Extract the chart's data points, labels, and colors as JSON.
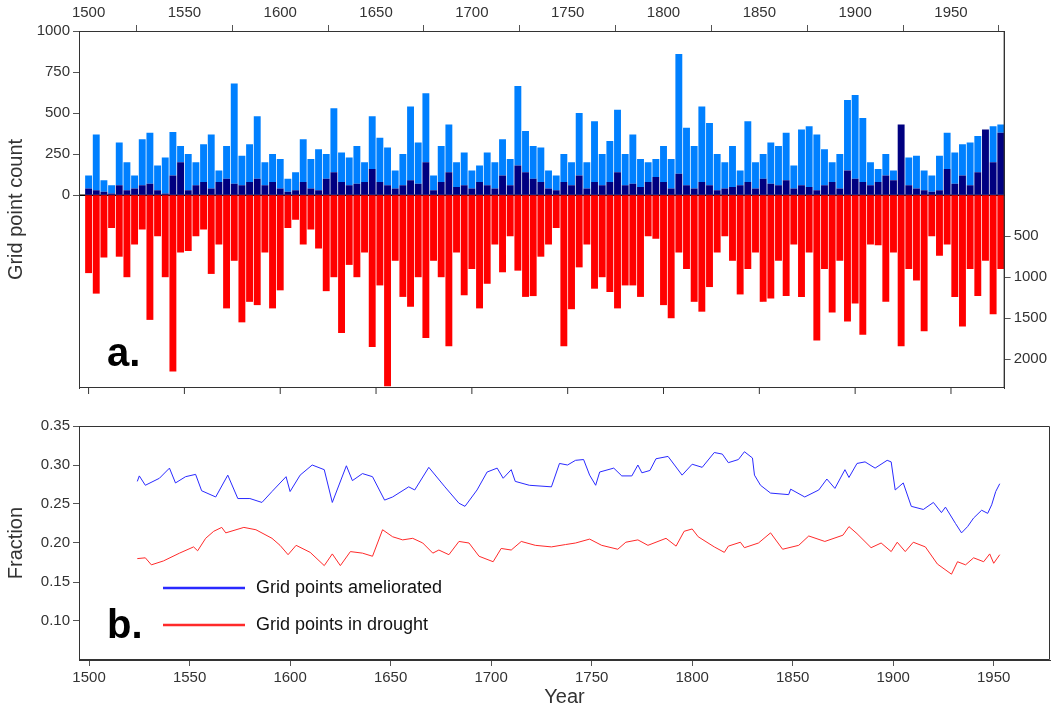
{
  "chart_data": [
    {
      "type": "bar",
      "ylabel": "Grid point count",
      "annotations": [
        "a."
      ],
      "stacked": true,
      "x": [
        1500,
        1504,
        1508,
        1512,
        1516,
        1520,
        1524,
        1528,
        1532,
        1536,
        1540,
        1544,
        1548,
        1552,
        1556,
        1560,
        1564,
        1568,
        1572,
        1576,
        1580,
        1584,
        1588,
        1592,
        1596,
        1600,
        1604,
        1608,
        1612,
        1616,
        1620,
        1624,
        1628,
        1632,
        1636,
        1640,
        1644,
        1648,
        1652,
        1656,
        1660,
        1664,
        1668,
        1672,
        1676,
        1680,
        1684,
        1688,
        1692,
        1696,
        1700,
        1704,
        1708,
        1712,
        1716,
        1720,
        1724,
        1728,
        1732,
        1736,
        1740,
        1744,
        1748,
        1752,
        1756,
        1760,
        1764,
        1768,
        1772,
        1776,
        1780,
        1784,
        1788,
        1792,
        1796,
        1800,
        1804,
        1808,
        1812,
        1816,
        1820,
        1824,
        1828,
        1832,
        1836,
        1840,
        1844,
        1848,
        1852,
        1856,
        1860,
        1864,
        1868,
        1872,
        1876,
        1880,
        1884,
        1888,
        1892,
        1896,
        1900,
        1904,
        1908,
        1912,
        1916,
        1920,
        1924,
        1928,
        1932,
        1936,
        1940,
        1944,
        1948,
        1952,
        1956,
        1960,
        1964,
        1968,
        1972,
        1976
      ],
      "series": [
        {
          "color": "#000080",
          "values": [
            40,
            30,
            20,
            10,
            60,
            30,
            40,
            60,
            70,
            30,
            10,
            120,
            200,
            30,
            60,
            80,
            40,
            80,
            100,
            70,
            60,
            80,
            100,
            60,
            80,
            40,
            20,
            30,
            80,
            40,
            30,
            100,
            140,
            80,
            60,
            70,
            80,
            160,
            80,
            60,
            40,
            60,
            90,
            70,
            200,
            30,
            80,
            140,
            50,
            60,
            40,
            80,
            60,
            40,
            120,
            60,
            180,
            140,
            100,
            80,
            40,
            30,
            80,
            60,
            120,
            40,
            80,
            60,
            80,
            140,
            60,
            70,
            50,
            80,
            110,
            80,
            40,
            130,
            60,
            40,
            80,
            60,
            30,
            40,
            50,
            60,
            80,
            40,
            100,
            70,
            60,
            90,
            40,
            60,
            50,
            30,
            60,
            80,
            40,
            150,
            100,
            80,
            60,
            80,
            120,
            90,
            430,
            60,
            40,
            30,
            20,
            30,
            160,
            70,
            120,
            60,
            140,
            400,
            200,
            380
          ]
        },
        {
          "color": "#0080ff",
          "values": [
            80,
            340,
            70,
            50,
            260,
            170,
            80,
            280,
            310,
            150,
            220,
            265,
            100,
            220,
            140,
            230,
            330,
            70,
            200,
            610,
            180,
            230,
            380,
            140,
            170,
            180,
            80,
            110,
            260,
            180,
            250,
            150,
            390,
            180,
            170,
            230,
            120,
            320,
            270,
            230,
            110,
            190,
            450,
            250,
            420,
            90,
            220,
            290,
            150,
            200,
            110,
            100,
            200,
            160,
            220,
            160,
            485,
            250,
            200,
            210,
            110,
            90,
            170,
            140,
            380,
            160,
            370,
            190,
            250,
            380,
            190,
            300,
            170,
            120,
            110,
            220,
            180,
            730,
            350,
            260,
            460,
            380,
            220,
            160,
            250,
            90,
            370,
            160,
            150,
            250,
            240,
            290,
            140,
            340,
            370,
            340,
            220,
            120,
            210,
            430,
            510,
            390,
            140,
            80,
            130,
            60,
            0,
            170,
            200,
            120,
            100,
            210,
            220,
            190,
            190,
            260,
            220,
            0,
            220,
            50
          ]
        },
        {
          "color": "#ff0000",
          "axis": "y2",
          "values": [
            950,
            1200,
            760,
            400,
            750,
            1000,
            600,
            420,
            1520,
            500,
            1000,
            2150,
            700,
            680,
            500,
            420,
            960,
            600,
            1380,
            800,
            1550,
            1300,
            1340,
            700,
            1380,
            1160,
            400,
            300,
            600,
            420,
            650,
            1170,
            1000,
            1680,
            850,
            1000,
            700,
            1850,
            1100,
            2330,
            800,
            1240,
            1360,
            1000,
            1740,
            800,
            1000,
            1840,
            700,
            1220,
            900,
            1380,
            1080,
            600,
            940,
            500,
            920,
            1240,
            1230,
            750,
            600,
            400,
            1840,
            1390,
            880,
            600,
            1140,
            1000,
            1180,
            1380,
            1100,
            1100,
            1240,
            500,
            530,
            1340,
            1500,
            700,
            900,
            1300,
            1420,
            1120,
            700,
            500,
            800,
            1210,
            900,
            700,
            1300,
            1260,
            800,
            1230,
            600,
            1240,
            700,
            1770,
            900,
            1430,
            800,
            1540,
            1320,
            1700,
            600,
            610,
            1300,
            700,
            1840,
            900,
            1040,
            1660,
            500,
            740,
            600,
            1240,
            1600,
            900,
            1230,
            800,
            1450,
            900
          ]
        }
      ],
      "xlim": [
        1495,
        1978
      ],
      "xticks": [
        1500,
        1550,
        1600,
        1650,
        1700,
        1750,
        1800,
        1850,
        1900,
        1950
      ],
      "ylim": [
        -1175,
        1000
      ],
      "yticks": [
        0,
        250,
        500,
        750,
        1000
      ],
      "y2lim": [
        2350,
        -2000
      ],
      "y2ticks": [
        500,
        1000,
        1500,
        2000
      ],
      "ref_lines": [
        {
          "axis": "y",
          "value": 0,
          "color": "#000000"
        }
      ]
    },
    {
      "type": "line",
      "xlabel": "Year",
      "ylabel": "Fraction",
      "annotations": [
        "b."
      ],
      "legend": "bottom left",
      "marker": "none",
      "series": [
        {
          "name": "Grid points ameliorated",
          "color": "#2a2aff",
          "x": [
            1524,
            1525,
            1528,
            1535,
            1540,
            1543,
            1548,
            1553,
            1556,
            1563,
            1569,
            1574,
            1580,
            1586,
            1591,
            1598,
            1600,
            1605,
            1611,
            1617,
            1621,
            1628,
            1631,
            1636,
            1641,
            1647,
            1651,
            1659,
            1662,
            1669,
            1677,
            1684,
            1687,
            1693,
            1698,
            1703,
            1706,
            1710,
            1712,
            1719,
            1730,
            1734,
            1738,
            1742,
            1746,
            1749,
            1752,
            1754,
            1761,
            1765,
            1770,
            1773,
            1775,
            1779,
            1782,
            1788,
            1795,
            1800,
            1805,
            1811,
            1815,
            1818,
            1823,
            1826,
            1830,
            1831,
            1834,
            1839,
            1848,
            1849,
            1856,
            1863,
            1867,
            1871,
            1876,
            1878,
            1882,
            1886,
            1891,
            1897,
            1899,
            1901,
            1905,
            1909,
            1915,
            1920,
            1924,
            1926,
            1931,
            1934,
            1937,
            1940,
            1944,
            1947,
            1949,
            1951,
            1953
          ],
          "values": [
            0.279,
            0.286,
            0.274,
            0.283,
            0.296,
            0.277,
            0.285,
            0.288,
            0.267,
            0.259,
            0.287,
            0.257,
            0.257,
            0.252,
            0.266,
            0.285,
            0.266,
            0.287,
            0.3,
            0.294,
            0.252,
            0.299,
            0.28,
            0.289,
            0.285,
            0.255,
            0.259,
            0.272,
            0.268,
            0.297,
            0.272,
            0.251,
            0.247,
            0.268,
            0.291,
            0.296,
            0.283,
            0.294,
            0.279,
            0.274,
            0.272,
            0.302,
            0.3,
            0.306,
            0.307,
            0.287,
            0.274,
            0.291,
            0.296,
            0.286,
            0.286,
            0.3,
            0.29,
            0.293,
            0.308,
            0.311,
            0.287,
            0.301,
            0.297,
            0.316,
            0.314,
            0.303,
            0.307,
            0.317,
            0.309,
            0.287,
            0.274,
            0.264,
            0.262,
            0.269,
            0.259,
            0.268,
            0.282,
            0.27,
            0.294,
            0.284,
            0.302,
            0.304,
            0.296,
            0.306,
            0.304,
            0.268,
            0.277,
            0.247,
            0.243,
            0.252,
            0.239,
            0.246,
            0.225,
            0.213,
            0.221,
            0.232,
            0.242,
            0.238,
            0.249,
            0.266,
            0.276
          ]
        },
        {
          "name": "Grid points in drought",
          "color": "#ff2a2a",
          "x": [
            1524,
            1528,
            1531,
            1537,
            1545,
            1552,
            1554,
            1558,
            1562,
            1566,
            1568,
            1577,
            1583,
            1591,
            1595,
            1599,
            1603,
            1610,
            1617,
            1621,
            1625,
            1630,
            1636,
            1641,
            1646,
            1651,
            1656,
            1661,
            1666,
            1671,
            1674,
            1679,
            1684,
            1689,
            1694,
            1701,
            1705,
            1710,
            1715,
            1722,
            1730,
            1737,
            1742,
            1749,
            1755,
            1763,
            1767,
            1773,
            1778,
            1787,
            1792,
            1796,
            1800,
            1803,
            1811,
            1816,
            1818,
            1824,
            1826,
            1833,
            1839,
            1845,
            1853,
            1858,
            1866,
            1875,
            1878,
            1882,
            1889,
            1894,
            1899,
            1902,
            1906,
            1910,
            1916,
            1922,
            1929,
            1932,
            1936,
            1940,
            1945,
            1948,
            1950,
            1953
          ],
          "values": [
            0.18,
            0.181,
            0.172,
            0.177,
            0.187,
            0.195,
            0.19,
            0.206,
            0.215,
            0.22,
            0.213,
            0.22,
            0.217,
            0.206,
            0.197,
            0.185,
            0.197,
            0.188,
            0.171,
            0.186,
            0.171,
            0.189,
            0.187,
            0.183,
            0.217,
            0.208,
            0.204,
            0.206,
            0.2,
            0.187,
            0.191,
            0.185,
            0.202,
            0.2,
            0.183,
            0.176,
            0.193,
            0.191,
            0.202,
            0.197,
            0.195,
            0.198,
            0.2,
            0.205,
            0.197,
            0.192,
            0.201,
            0.204,
            0.197,
            0.206,
            0.196,
            0.215,
            0.218,
            0.208,
            0.195,
            0.188,
            0.196,
            0.201,
            0.194,
            0.2,
            0.213,
            0.192,
            0.197,
            0.209,
            0.202,
            0.21,
            0.221,
            0.212,
            0.194,
            0.2,
            0.189,
            0.201,
            0.189,
            0.201,
            0.195,
            0.173,
            0.16,
            0.176,
            0.172,
            0.181,
            0.176,
            0.186,
            0.174,
            0.185
          ]
        }
      ],
      "xlim": [
        1495,
        1978
      ],
      "xticks": [
        1500,
        1550,
        1600,
        1650,
        1700,
        1750,
        1800,
        1850,
        1900,
        1950
      ],
      "ylim": [
        0.05,
        0.35
      ],
      "yticks": [
        {
          "value": 0.1,
          "label": "0.10"
        },
        0.15,
        {
          "value": 0.2,
          "label": "0.20"
        },
        0.25,
        {
          "value": 0.3,
          "label": "0.30"
        },
        0.35
      ]
    }
  ]
}
